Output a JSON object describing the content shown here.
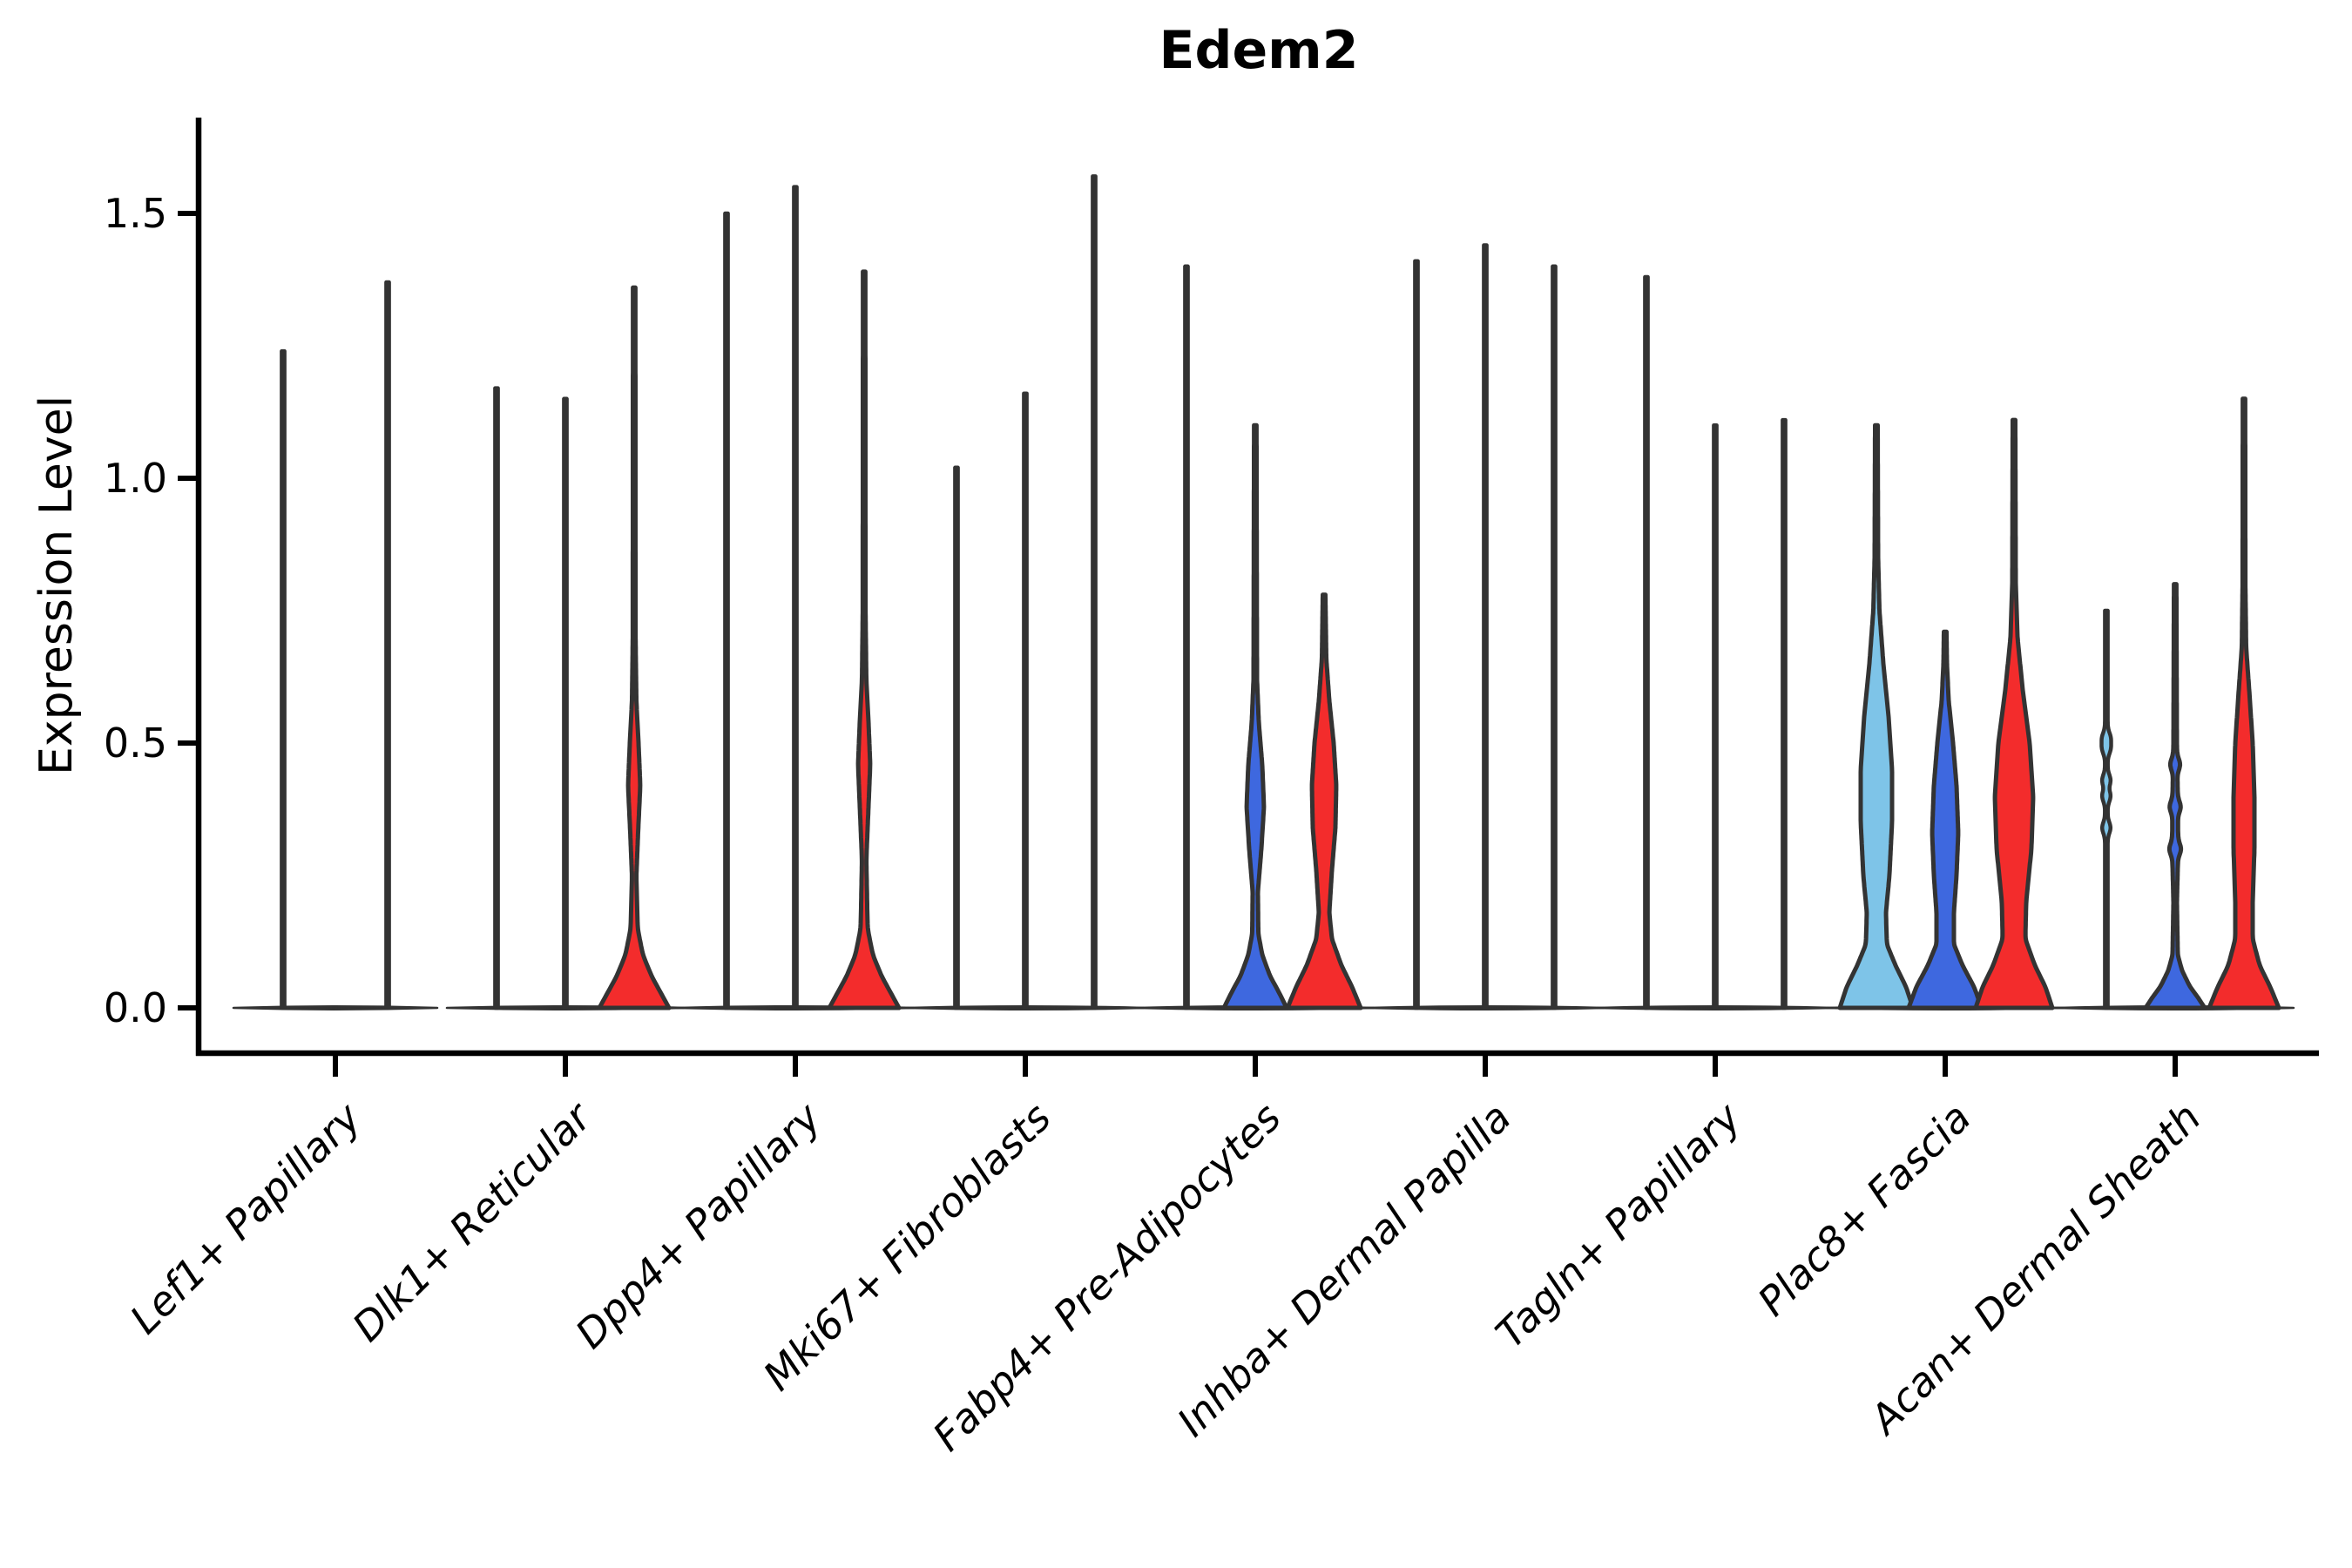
{
  "title": "Edem2",
  "chart_data": {
    "type": "violin",
    "title": "Edem2",
    "ylabel": "Expression Level",
    "xlabel": "",
    "background": "#FFFFFF",
    "grid": false,
    "legend_position": "none",
    "ylim": [
      -0.09,
      1.67
    ],
    "ytick_values": [
      0.0,
      0.5,
      1.0,
      1.5
    ],
    "ytick_labels": [
      "0.0",
      "0.5",
      "1.0",
      "1.5"
    ],
    "series_colors": [
      "#7EC4E8",
      "#3E68DF",
      "#F32C2C"
    ],
    "outline_color": "#333333",
    "categories": [
      "Lef1+ Papillary",
      "Dlk1+ Reticular",
      "Dpp4+ Papillary",
      "Mki67+ Fibroblasts",
      "Fabp4+ Pre-Adipocytes",
      "Inhba+ Dermal Papilla",
      "Tagln+ Papillary",
      "Plac8+ Fascia",
      "Acan+ Dermal Sheath"
    ],
    "groups": [
      {
        "label": "Lef1+ Papillary",
        "violins": [
          {
            "series": 0,
            "shape": "spike",
            "max": 1.24
          },
          {
            "series": 1,
            "shape": "spike",
            "max": 1.37
          }
        ]
      },
      {
        "label": "Dlk1+ Reticular",
        "violins": [
          {
            "series": 0,
            "shape": "spike",
            "max": 1.17
          },
          {
            "series": 1,
            "shape": "spike",
            "max": 1.15
          },
          {
            "series": 2,
            "shape": "body",
            "max": 1.36,
            "profile": [
              [
                0,
                40
              ],
              [
                0.03,
                30
              ],
              [
                0.06,
                20
              ],
              [
                0.1,
                10
              ],
              [
                0.15,
                4
              ],
              [
                0.25,
                2.5
              ],
              [
                0.33,
                4.5
              ],
              [
                0.42,
                7
              ],
              [
                0.5,
                5
              ],
              [
                0.58,
                2.5
              ],
              [
                0.7,
                1.6
              ],
              [
                1.36,
                1.4
              ]
            ]
          }
        ]
      },
      {
        "label": "Dpp4+ Papillary",
        "violins": [
          {
            "series": 0,
            "shape": "spike",
            "max": 1.5
          },
          {
            "series": 1,
            "shape": "spike",
            "max": 1.55
          },
          {
            "series": 2,
            "shape": "body",
            "max": 1.39,
            "profile": [
              [
                0,
                40
              ],
              [
                0.03,
                30
              ],
              [
                0.06,
                20
              ],
              [
                0.1,
                10
              ],
              [
                0.15,
                4
              ],
              [
                0.28,
                2.5
              ],
              [
                0.38,
                5
              ],
              [
                0.46,
                7
              ],
              [
                0.54,
                5
              ],
              [
                0.62,
                2.5
              ],
              [
                0.75,
                1.6
              ],
              [
                1.39,
                1.4
              ]
            ]
          }
        ]
      },
      {
        "label": "Mki67+ Fibroblasts",
        "violins": [
          {
            "series": 0,
            "shape": "spike",
            "max": 1.02
          },
          {
            "series": 1,
            "shape": "spike",
            "max": 1.16
          },
          {
            "series": 2,
            "shape": "spike",
            "max": 1.57
          }
        ]
      },
      {
        "label": "Fabp4+ Pre-Adipocytes",
        "violins": [
          {
            "series": 0,
            "shape": "spike",
            "max": 1.4
          },
          {
            "series": 1,
            "shape": "body",
            "max": 1.1,
            "profile": [
              [
                0,
                36
              ],
              [
                0.03,
                27
              ],
              [
                0.06,
                17
              ],
              [
                0.1,
                8
              ],
              [
                0.14,
                3.5
              ],
              [
                0.22,
                3
              ],
              [
                0.3,
                7
              ],
              [
                0.38,
                10
              ],
              [
                0.46,
                8
              ],
              [
                0.54,
                4
              ],
              [
                0.62,
                2
              ],
              [
                1.1,
                1.4
              ]
            ]
          },
          {
            "series": 2,
            "shape": "body",
            "max": 0.78,
            "profile": [
              [
                0,
                42
              ],
              [
                0.04,
                32
              ],
              [
                0.08,
                20
              ],
              [
                0.13,
                9
              ],
              [
                0.18,
                6
              ],
              [
                0.26,
                9
              ],
              [
                0.34,
                13
              ],
              [
                0.42,
                14
              ],
              [
                0.5,
                11
              ],
              [
                0.58,
                6
              ],
              [
                0.66,
                2.5
              ],
              [
                0.78,
                1.5
              ]
            ]
          }
        ]
      },
      {
        "label": "Inhba+ Dermal Papilla",
        "violins": [
          {
            "series": 0,
            "shape": "spike",
            "max": 1.41
          },
          {
            "series": 1,
            "shape": "spike",
            "max": 1.44
          },
          {
            "series": 2,
            "shape": "spike",
            "max": 1.4
          }
        ]
      },
      {
        "label": "Tagln+ Papillary",
        "violins": [
          {
            "series": 0,
            "shape": "spike",
            "max": 1.38
          },
          {
            "series": 1,
            "shape": "spike",
            "max": 1.1
          },
          {
            "series": 2,
            "shape": "spike",
            "max": 1.11
          }
        ]
      },
      {
        "label": "Plac8+ Fascia",
        "violins": [
          {
            "series": 0,
            "shape": "body",
            "max": 1.1,
            "profile": [
              [
                0,
                42
              ],
              [
                0.04,
                34
              ],
              [
                0.08,
                22
              ],
              [
                0.12,
                12
              ],
              [
                0.18,
                11
              ],
              [
                0.25,
                15
              ],
              [
                0.35,
                18
              ],
              [
                0.45,
                18
              ],
              [
                0.55,
                14
              ],
              [
                0.65,
                8
              ],
              [
                0.75,
                3.5
              ],
              [
                0.85,
                2
              ],
              [
                1.1,
                1.5
              ]
            ]
          },
          {
            "series": 1,
            "shape": "body",
            "max": 0.71,
            "profile": [
              [
                0,
                42
              ],
              [
                0.04,
                33
              ],
              [
                0.08,
                20
              ],
              [
                0.12,
                10
              ],
              [
                0.18,
                10
              ],
              [
                0.25,
                13
              ],
              [
                0.33,
                15
              ],
              [
                0.42,
                13
              ],
              [
                0.5,
                9
              ],
              [
                0.58,
                4
              ],
              [
                0.65,
                2
              ],
              [
                0.71,
                1.5
              ]
            ]
          },
          {
            "series": 2,
            "shape": "body",
            "max": 1.11,
            "profile": [
              [
                0,
                44
              ],
              [
                0.04,
                36
              ],
              [
                0.08,
                24
              ],
              [
                0.13,
                13
              ],
              [
                0.2,
                14
              ],
              [
                0.3,
                20
              ],
              [
                0.4,
                22
              ],
              [
                0.5,
                18
              ],
              [
                0.6,
                10
              ],
              [
                0.7,
                4
              ],
              [
                0.8,
                2
              ],
              [
                1.11,
                1.5
              ]
            ]
          }
        ]
      },
      {
        "label": "Acan+ Dermal Sheath",
        "violins": [
          {
            "series": 0,
            "shape": "spike",
            "max": 0.75,
            "knots": [
              0.34,
              0.4,
              0.43,
              0.49,
              0.51
            ]
          },
          {
            "series": 1,
            "shape": "body",
            "max": 0.8,
            "knots": [
              0.3,
              0.38,
              0.46
            ],
            "profile": [
              [
                0,
                34
              ],
              [
                0.02,
                26
              ],
              [
                0.04,
                17
              ],
              [
                0.07,
                8
              ],
              [
                0.1,
                3
              ],
              [
                0.2,
                2
              ],
              [
                0.3,
                3.5
              ],
              [
                0.4,
                3
              ],
              [
                0.5,
                2
              ],
              [
                0.8,
                1.4
              ]
            ]
          },
          {
            "series": 2,
            "shape": "body",
            "max": 1.15,
            "profile": [
              [
                0,
                40
              ],
              [
                0.04,
                30
              ],
              [
                0.08,
                18
              ],
              [
                0.13,
                10
              ],
              [
                0.2,
                10
              ],
              [
                0.3,
                12
              ],
              [
                0.4,
                12
              ],
              [
                0.5,
                10
              ],
              [
                0.6,
                6
              ],
              [
                0.68,
                2.5
              ],
              [
                0.8,
                1.6
              ],
              [
                1.15,
                1.4
              ]
            ]
          }
        ]
      }
    ]
  }
}
